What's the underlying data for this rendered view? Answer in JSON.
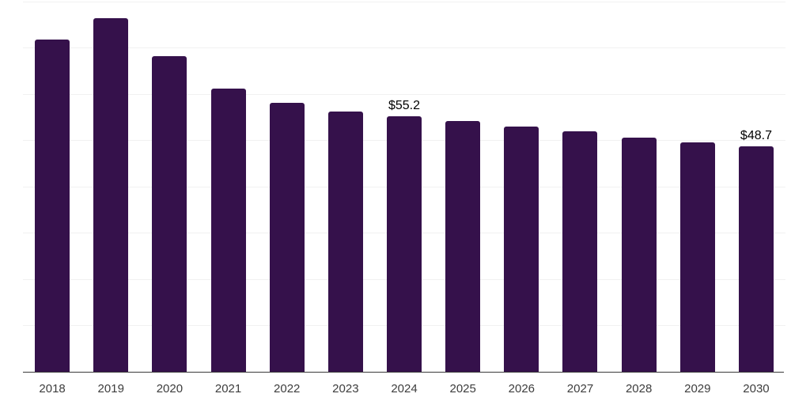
{
  "chart_data": {
    "type": "bar",
    "title": "",
    "xlabel": "",
    "ylabel": "",
    "categories": [
      "2018",
      "2019",
      "2020",
      "2021",
      "2022",
      "2023",
      "2024",
      "2025",
      "2026",
      "2027",
      "2028",
      "2029",
      "2030"
    ],
    "values": [
      71.7,
      76.4,
      68.1,
      61.1,
      58.1,
      56.2,
      55.2,
      54.1,
      52.9,
      51.9,
      50.6,
      49.5,
      48.7
    ],
    "data_labels": {
      "2024": "$55.2",
      "2030": "$48.7"
    },
    "ylim": [
      0,
      80
    ],
    "gridline_step": 10,
    "grid": true,
    "legend": false,
    "y_axis_tick_labels_visible": false,
    "colors": {
      "bar": "#35114b",
      "gridline": "#f1f1f1",
      "axis": "#3a3a3a",
      "value_label": "#000000",
      "tick_label": "#3d3d3d",
      "background": "#ffffff"
    }
  }
}
